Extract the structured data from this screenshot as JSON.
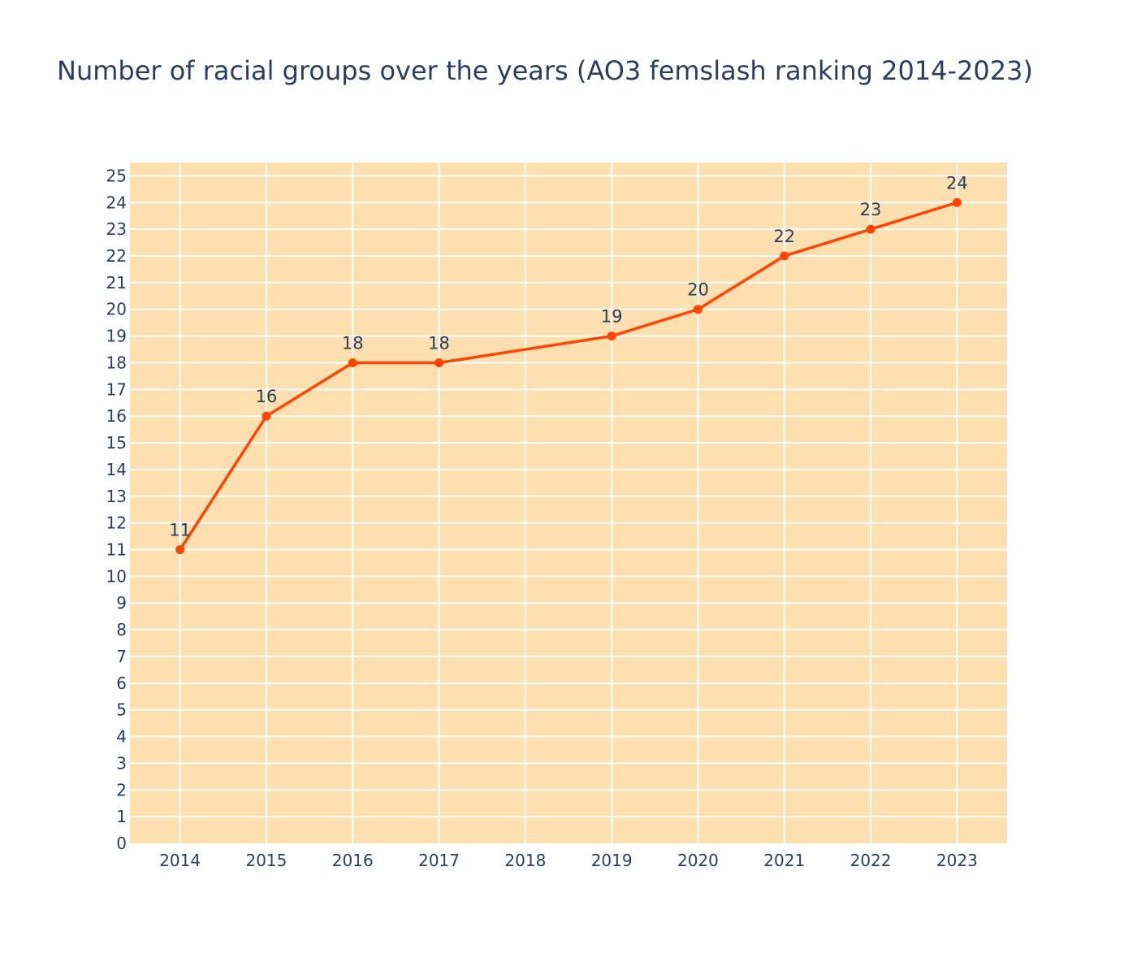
{
  "chart_data": {
    "type": "line",
    "title": "Number of racial groups over the years (AO3 femslash ranking 2014-2023)",
    "xlabel": "",
    "ylabel": "",
    "x_ticks": [
      "2014",
      "2015",
      "2016",
      "2017",
      "2018",
      "2019",
      "2020",
      "2021",
      "2022",
      "2023"
    ],
    "xlim": [
      2013.42,
      2023.58
    ],
    "ylim": [
      0,
      25.5
    ],
    "y_ticks": [
      0,
      1,
      2,
      3,
      4,
      5,
      6,
      7,
      8,
      9,
      10,
      11,
      12,
      13,
      14,
      15,
      16,
      17,
      18,
      19,
      20,
      21,
      22,
      23,
      24,
      25
    ],
    "grid": true,
    "series": [
      {
        "x": [
          2014,
          2015,
          2016,
          2017,
          2019,
          2020,
          2021,
          2022,
          2023
        ],
        "y": [
          11,
          16,
          18,
          18,
          19,
          20,
          22,
          23,
          24
        ],
        "color": "#ff4500",
        "show_labels": true
      }
    ],
    "colors": {
      "plot_background": "#fedfaf",
      "grid": "#ffffff",
      "text": "#2a3f5f",
      "line": "#ff4500"
    }
  }
}
